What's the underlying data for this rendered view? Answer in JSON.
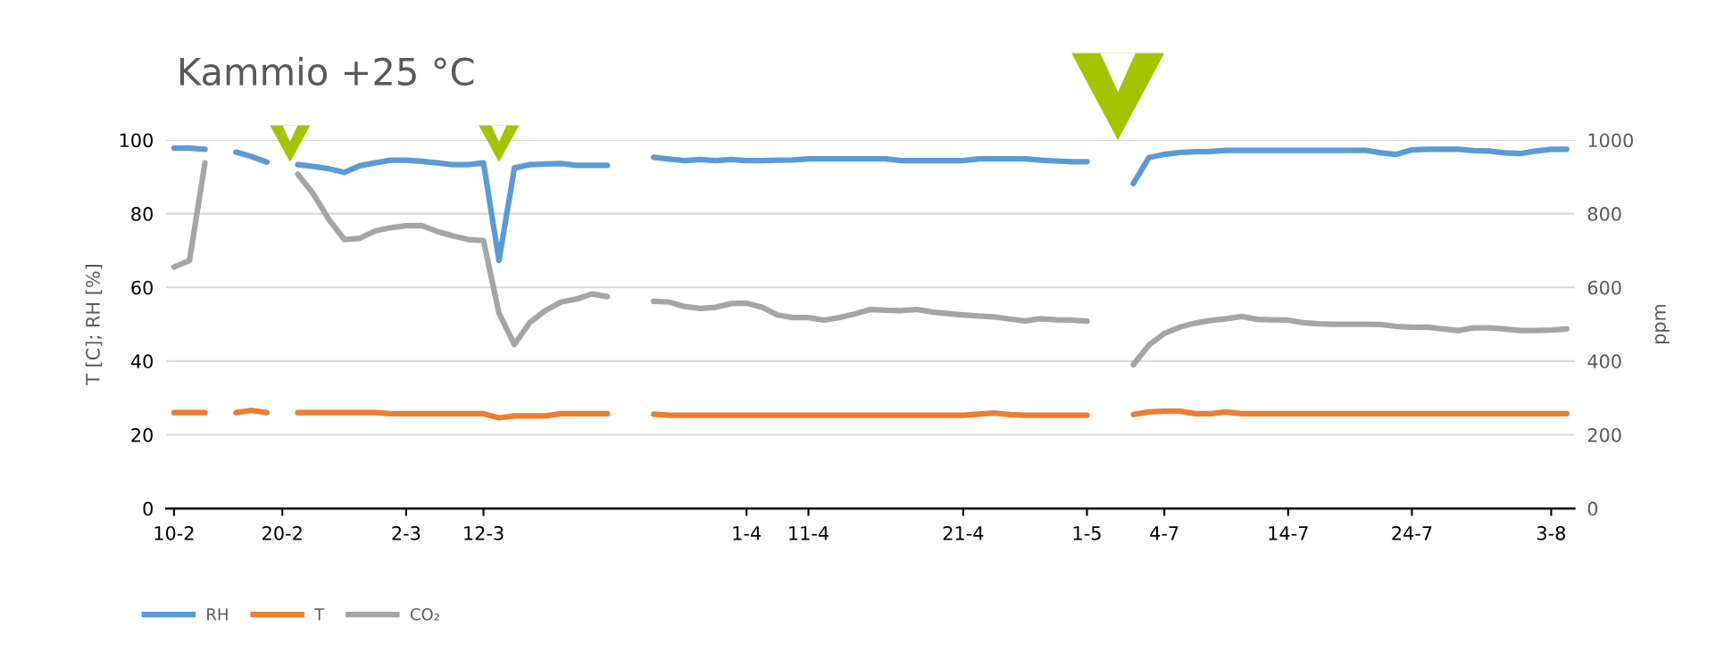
{
  "chart_data": {
    "type": "line",
    "title": "Kammio +25 °C",
    "ylabel": "T [C]; RH [%]",
    "y2label": "ppm",
    "categories": [
      "10-2",
      null,
      null,
      null,
      null,
      null,
      null,
      "20-2",
      null,
      null,
      null,
      null,
      null,
      null,
      null,
      "2-3",
      null,
      null,
      null,
      null,
      "12-3",
      null,
      null,
      null,
      null,
      null,
      null,
      null,
      null,
      null,
      null,
      null,
      null,
      null,
      null,
      null,
      null,
      "1-4",
      null,
      null,
      null,
      "11-4",
      null,
      null,
      null,
      null,
      null,
      null,
      null,
      null,
      null,
      "21-4",
      null,
      null,
      null,
      null,
      null,
      null,
      null,
      "1-5",
      null,
      null,
      null,
      null,
      "4-7",
      null,
      null,
      null,
      null,
      null,
      null,
      null,
      "14-7",
      null,
      null,
      null,
      null,
      null,
      null,
      null,
      "24-7",
      null,
      null,
      null,
      null,
      null,
      null,
      null,
      null,
      "3-8",
      null
    ],
    "series": [
      {
        "name": "RH",
        "color": "#5b9bd5",
        "values": [
          97.8,
          97.8,
          97.5,
          null,
          96.7,
          95.5,
          94.0,
          null,
          93.3,
          92.8,
          92.2,
          91.2,
          93.0,
          93.8,
          94.5,
          94.5,
          94.2,
          93.8,
          93.3,
          93.3,
          93.8,
          67.3,
          92.4,
          93.3,
          93.5,
          93.6,
          93.1,
          93.1,
          93.1,
          null,
          null,
          95.3,
          94.8,
          94.4,
          94.7,
          94.4,
          94.7,
          94.4,
          94.4,
          94.5,
          94.6,
          94.9,
          94.9,
          94.9,
          94.9,
          94.9,
          94.9,
          94.4,
          94.4,
          94.4,
          94.4,
          94.4,
          94.9,
          94.9,
          94.9,
          94.9,
          94.5,
          94.3,
          94.1,
          94.1,
          null,
          null,
          88.2,
          95.2,
          96.1,
          96.6,
          96.8,
          96.9,
          97.2,
          97.2,
          97.2,
          97.2,
          97.2,
          97.2,
          97.2,
          97.2,
          97.2,
          97.2,
          96.5,
          96.1,
          97.3,
          97.5,
          97.5,
          97.5,
          97.1,
          97.0,
          96.5,
          96.3,
          97.0,
          97.5,
          97.5
        ]
      },
      {
        "name": "T",
        "color": "#ed7d31",
        "values": [
          26.0,
          26.0,
          26.0,
          null,
          26.0,
          26.6,
          26.0,
          null,
          26.0,
          26.0,
          26.0,
          26.0,
          26.0,
          26.0,
          25.7,
          25.7,
          25.7,
          25.7,
          25.7,
          25.7,
          25.7,
          24.6,
          25.1,
          25.1,
          25.1,
          25.7,
          25.7,
          25.7,
          25.7,
          null,
          null,
          25.6,
          25.3,
          25.3,
          25.3,
          25.3,
          25.3,
          25.3,
          25.3,
          25.3,
          25.3,
          25.3,
          25.3,
          25.3,
          25.3,
          25.3,
          25.3,
          25.3,
          25.3,
          25.3,
          25.3,
          25.3,
          25.6,
          25.9,
          25.5,
          25.3,
          25.3,
          25.3,
          25.3,
          25.3,
          null,
          null,
          25.5,
          26.2,
          26.4,
          26.4,
          25.7,
          25.7,
          26.2,
          25.7,
          25.7,
          25.7,
          25.7,
          25.7,
          25.7,
          25.7,
          25.7,
          25.7,
          25.7,
          25.7,
          25.7,
          25.7,
          25.7,
          25.7,
          25.7,
          25.7,
          25.7,
          25.7,
          25.7,
          25.7,
          25.7
        ]
      },
      {
        "name": "CO₂",
        "color": "#a5a5a5",
        "axis": "y2",
        "values": [
          655,
          673,
          938,
          null,
          null,
          null,
          null,
          null,
          907,
          854,
          785,
          730,
          733,
          753,
          762,
          767,
          768,
          752,
          740,
          730,
          727,
          530,
          445,
          505,
          537,
          560,
          568,
          582,
          575,
          null,
          null,
          562,
          560,
          548,
          543,
          546,
          556,
          557,
          546,
          525,
          518,
          518,
          511,
          518,
          528,
          540,
          538,
          537,
          540,
          533,
          529,
          525,
          522,
          520,
          514,
          509,
          515,
          512,
          511,
          508,
          null,
          null,
          390,
          443,
          475,
          492,
          503,
          510,
          515,
          521,
          513,
          512,
          511,
          504,
          501,
          500,
          500,
          500,
          499,
          494,
          492,
          492,
          487,
          483,
          490,
          490,
          487,
          483,
          483,
          484,
          487
        ]
      }
    ],
    "ylim": [
      0,
      100
    ],
    "yticks": [
      0,
      20,
      40,
      60,
      80,
      100
    ],
    "y2lim": [
      0,
      1000
    ],
    "y2ticks": [
      0,
      200,
      400,
      600,
      800,
      1000
    ],
    "grid": "y",
    "legend": "bottom left",
    "marker": "none",
    "line_style": "solid"
  }
}
